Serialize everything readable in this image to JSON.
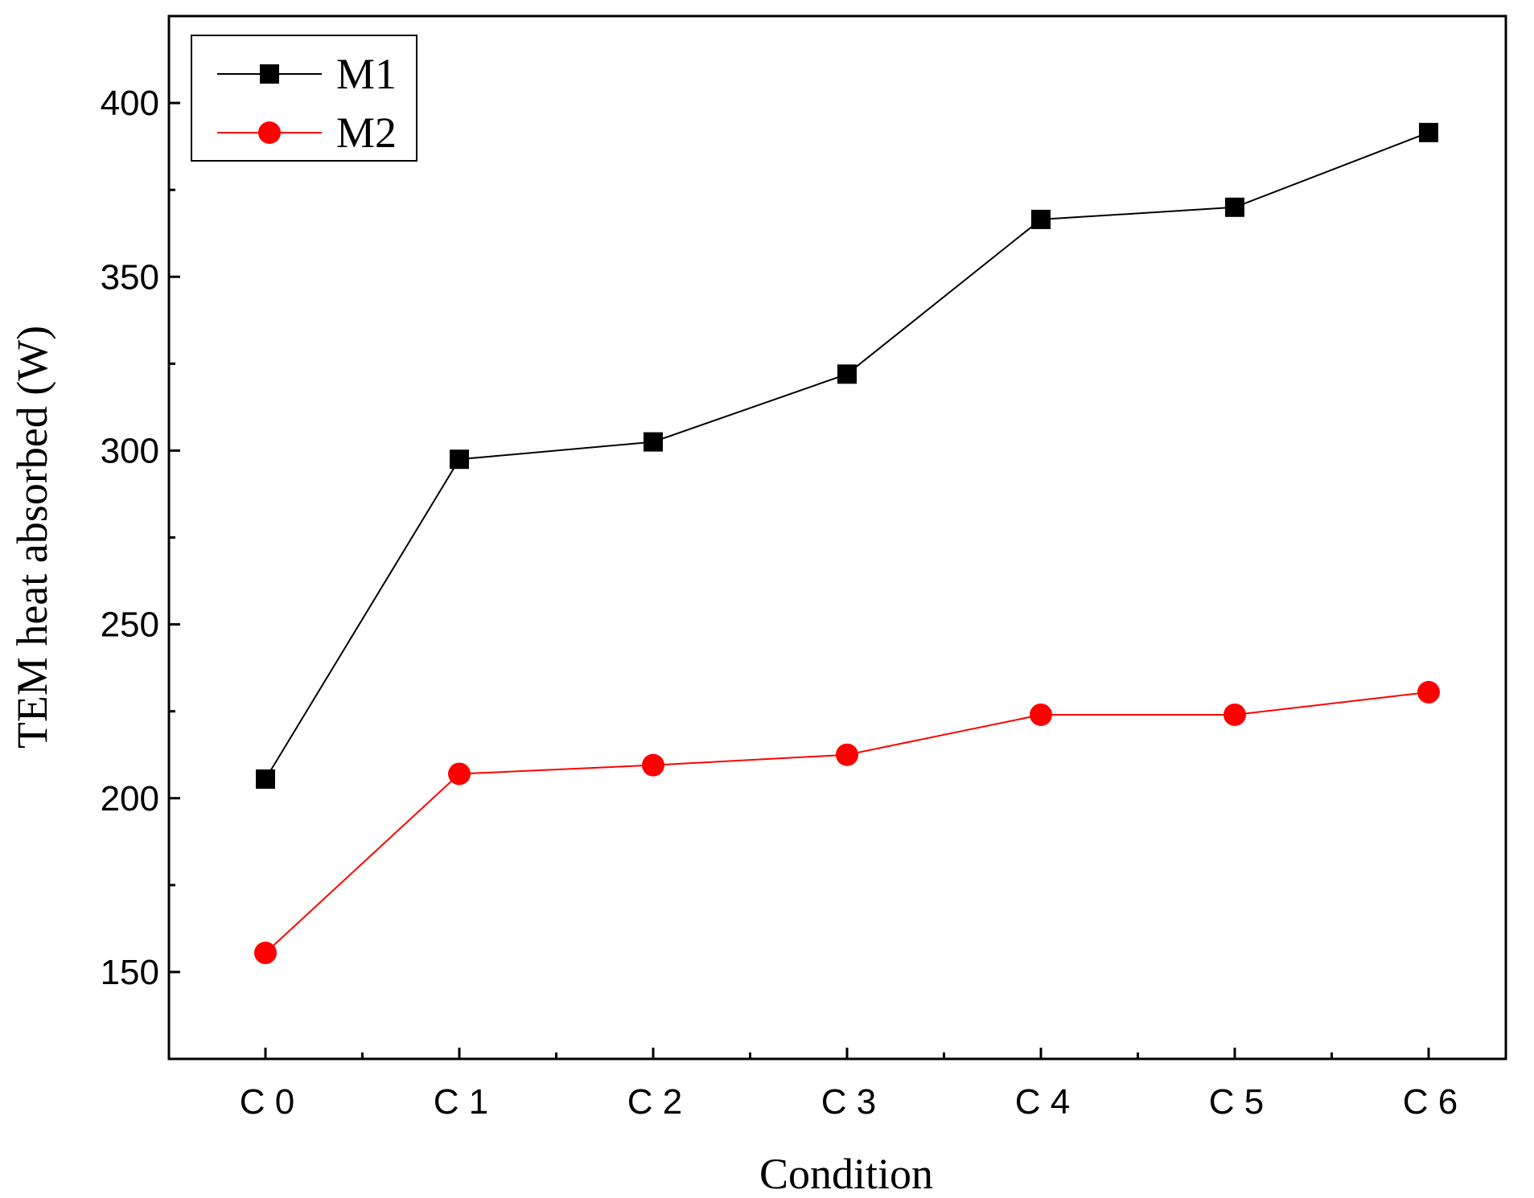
{
  "chart_data": {
    "type": "line",
    "title": "",
    "xlabel": "Condition",
    "ylabel": "TEM heat absorbed (W)",
    "categories": [
      "C 0",
      "C 1",
      "C 2",
      "C 3",
      "C 4",
      "C 5",
      "C 6"
    ],
    "ylim": [
      125,
      425
    ],
    "yticks": [
      150,
      200,
      250,
      300,
      350,
      400
    ],
    "yticks_minor": [
      175,
      225,
      275,
      325,
      375
    ],
    "grid": false,
    "legend_position": "top-left",
    "series": [
      {
        "name": "M1",
        "color": "#000000",
        "marker": "square",
        "values": [
          205.5,
          297.5,
          302.5,
          322,
          366.5,
          370,
          391.5
        ]
      },
      {
        "name": "M2",
        "color": "#ff0000",
        "marker": "circle",
        "values": [
          155.5,
          207,
          209.5,
          212.5,
          224,
          224,
          230.5
        ]
      }
    ]
  }
}
